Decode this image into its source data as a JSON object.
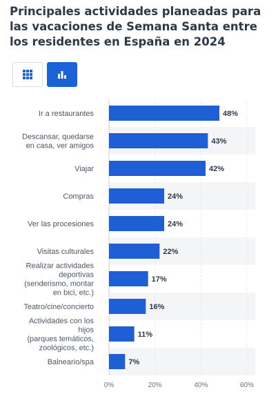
{
  "title": "Principales actividades planeadas para las vacaciones de Semana Santa entre los residentes en España en 2024",
  "view_toggle": {
    "table_icon": "table-grid-icon",
    "chart_icon": "bar-chart-icon",
    "active": "chart"
  },
  "colors": {
    "bar": "#1e5fd6",
    "stripe": "#f3f5f7",
    "title": "#2c3a47",
    "active_toggle": "#1a62d6"
  },
  "chart_data": {
    "type": "bar",
    "orientation": "horizontal",
    "categories": [
      "Ir a restaurantes",
      "Descansar, quedarse en casa, ver amigos",
      "Viajar",
      "Compras",
      "Ver las procesiones",
      "Visitas culturales",
      "Realizar actividades deportivas (senderismo, montar en bici, etc.)",
      "Teatro/cine/concierto",
      "Actividades con los hijos (parques temáticos, zoológicos, etc.)",
      "Balneario/spa"
    ],
    "category_lines": [
      [
        "Ir a restaurantes"
      ],
      [
        "Descansar, quedarse",
        "en casa, ver amigos"
      ],
      [
        "Viajar"
      ],
      [
        "Compras"
      ],
      [
        "Ver las procesiones"
      ],
      [
        "Visitas culturales"
      ],
      [
        "Realizar actividades",
        "deportivas",
        "(senderismo, montar",
        "en bici, etc.)"
      ],
      [
        "Teatro/cine/concierto"
      ],
      [
        "Actividades con los",
        "hijos",
        "(parques temáticos,",
        "zoológicos, etc.)"
      ],
      [
        "Balneario/spa"
      ]
    ],
    "values": [
      48,
      43,
      42,
      24,
      24,
      22,
      17,
      16,
      11,
      7
    ],
    "value_labels": [
      "48%",
      "43%",
      "42%",
      "24%",
      "24%",
      "22%",
      "17%",
      "16%",
      "11%",
      "7%"
    ],
    "xlim": [
      0,
      60
    ],
    "x_ticks": [
      0,
      20,
      40,
      60
    ],
    "x_tick_labels": [
      "0%",
      "20%",
      "40%",
      "60%"
    ],
    "grid": true
  }
}
